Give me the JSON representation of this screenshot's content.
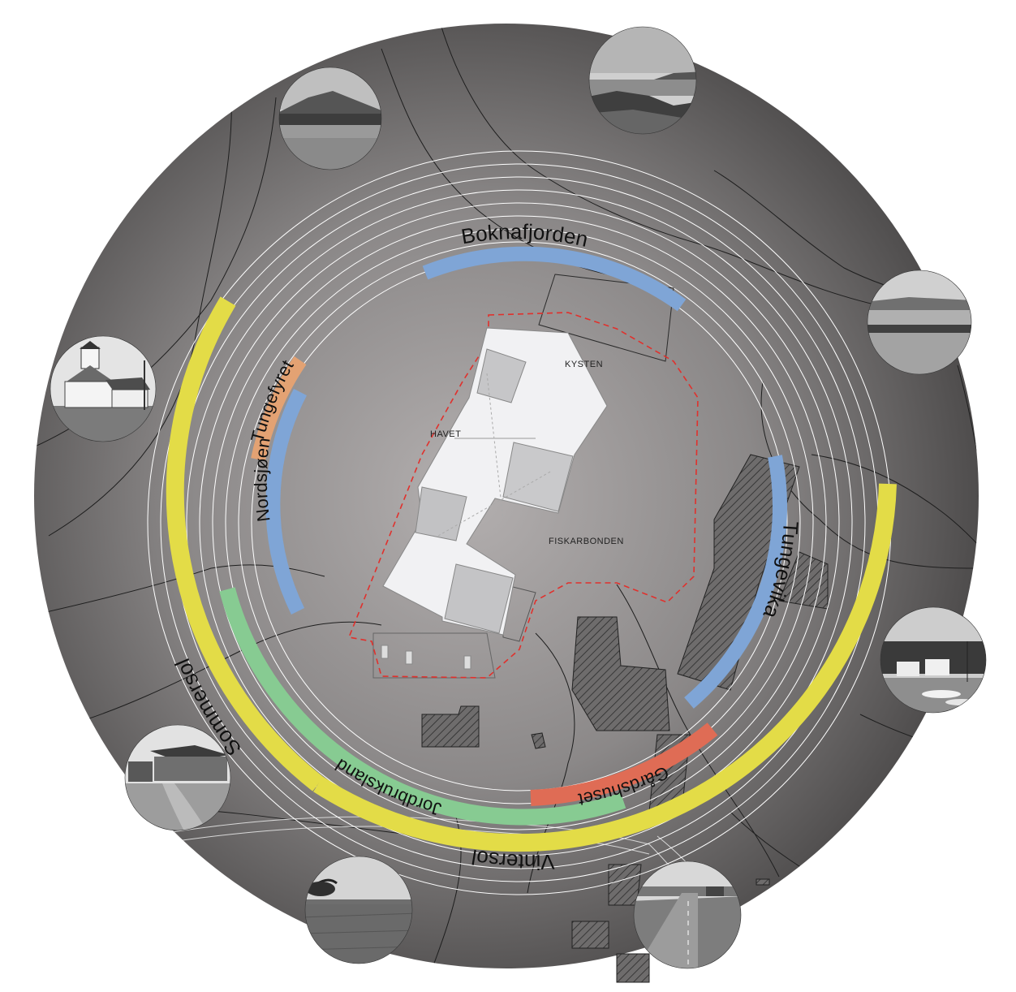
{
  "colors": {
    "disc_center": "#b3afaf",
    "disc_edge": "#4c4a4a",
    "sol": "#e3dc47",
    "sea": "#7fa5d6",
    "lighthouse": "#e3a273",
    "farmland": "#87cb92",
    "farmhouse": "#df6c55",
    "rings": "#ffffff",
    "site_boundary": "#e0312d",
    "building": "#f2f2f3",
    "building_dark": "#c4c4c6"
  },
  "arcs": {
    "sommersol": "Sommersol",
    "vintersol": "Vintersol",
    "boknafjorden": "Boknafjorden",
    "nordsjoen": "Nordsjøen",
    "tungefyret": "Tungefyret",
    "tungevika": "Tungevika",
    "jordbruksland": "Jordbruksland",
    "gardshuset": "Gårdshuset"
  },
  "zones": {
    "kysten": "KYSTEN",
    "havet": "HAVET",
    "fiskarbonden": "FISKARBONDEN"
  },
  "photos": [
    {
      "name": "photo-fjord-mountains",
      "subject": "fjord with mountains"
    },
    {
      "name": "photo-coast-bridge",
      "subject": "rocky coast with bridge"
    },
    {
      "name": "photo-rocky-shore",
      "subject": "rocky shore and sea"
    },
    {
      "name": "photo-lighthouse",
      "subject": "Tungefyret lighthouse"
    },
    {
      "name": "photo-harbour",
      "subject": "small harbour with boats"
    },
    {
      "name": "photo-stone-barn",
      "subject": "stone barn and farm road"
    },
    {
      "name": "photo-field",
      "subject": "farm field with tree"
    },
    {
      "name": "photo-road",
      "subject": "country road"
    }
  ]
}
